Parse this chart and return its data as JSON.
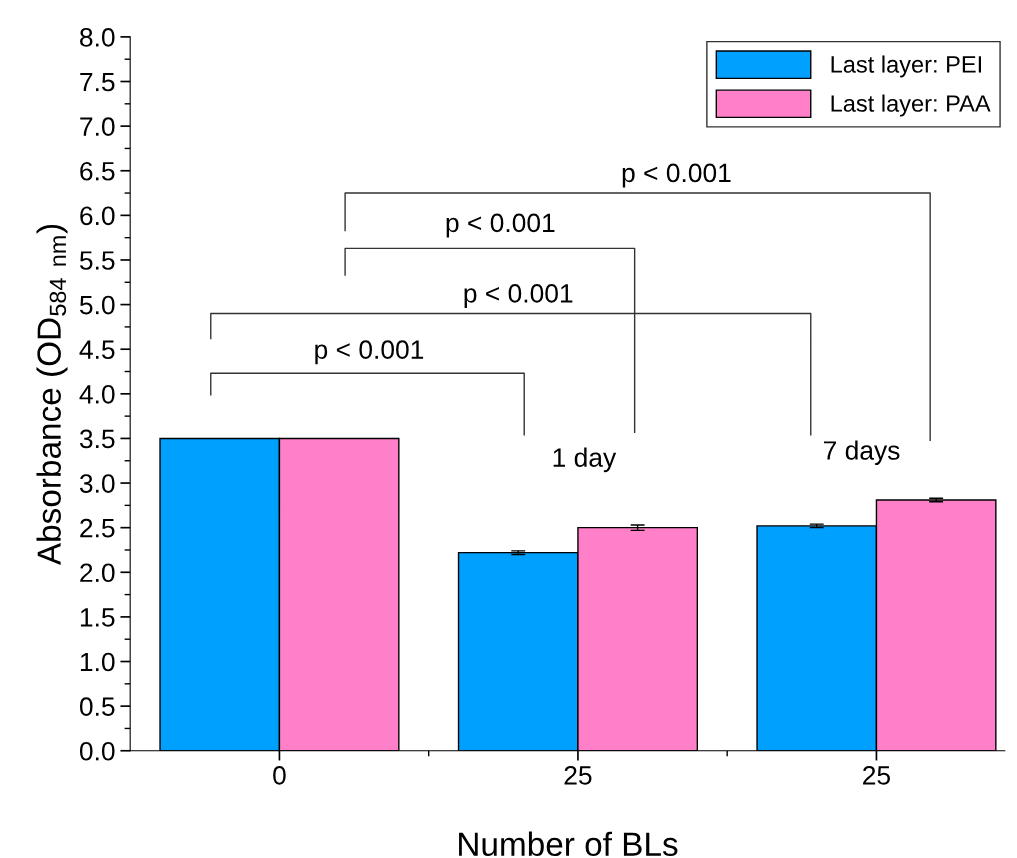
{
  "chart_data": {
    "type": "bar",
    "xlabel": "Number of BLs",
    "ylabel": "Absorbance (OD$_{584}$ $_{nm}$)",
    "categories": [
      "0",
      "25",
      "25"
    ],
    "series": [
      {
        "name": "Last layer: PEI",
        "color": "#00a0ff",
        "values": [
          3.5,
          2.22,
          2.52
        ],
        "errors": [
          null,
          0.02,
          0.02
        ]
      },
      {
        "name": "Last layer: PAA",
        "color": "#ff80c8",
        "values": [
          3.5,
          2.5,
          2.81
        ],
        "errors": [
          null,
          0.03,
          0.02
        ]
      }
    ],
    "ylim": [
      0.0,
      8.0
    ],
    "yticks": [
      {
        "value": 0,
        "label": "0.0"
      },
      0.5,
      {
        "value": 1,
        "label": "1.0"
      },
      1.5,
      {
        "value": 2,
        "label": "2.0"
      },
      2.5,
      {
        "value": 3,
        "label": "3.0"
      },
      3.5,
      {
        "value": 4,
        "label": "4.0"
      },
      4.5,
      {
        "value": 5,
        "label": "5.0"
      },
      5.5,
      {
        "value": 6,
        "label": "6.0"
      },
      6.5,
      {
        "value": 7,
        "label": "7.0"
      },
      7.5,
      {
        "value": 8,
        "label": "8.0"
      }
    ],
    "legend": "top right",
    "grid": false,
    "annotations": [
      "p < 0.001",
      "p < 0.001",
      "p < 0.001",
      "p < 0.001",
      "1 day",
      "7 days"
    ]
  }
}
